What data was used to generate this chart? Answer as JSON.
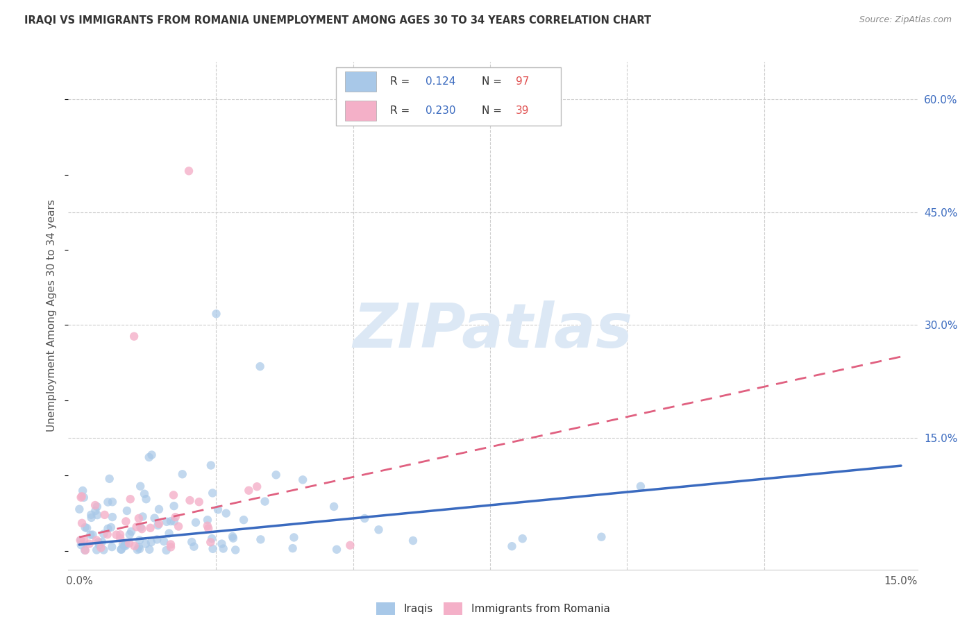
{
  "title": "IRAQI VS IMMIGRANTS FROM ROMANIA UNEMPLOYMENT AMONG AGES 30 TO 34 YEARS CORRELATION CHART",
  "source": "Source: ZipAtlas.com",
  "ylabel": "Unemployment Among Ages 30 to 34 years",
  "ytick_vals": [
    0.15,
    0.3,
    0.45,
    0.6
  ],
  "ytick_labels": [
    "15.0%",
    "30.0%",
    "45.0%",
    "60.0%"
  ],
  "xrange": [
    0.0,
    0.15
  ],
  "yrange": [
    0.0,
    0.65
  ],
  "iraqis_color": "#a8c8e8",
  "romania_color": "#f4b0c8",
  "iraqis_line_color": "#3a6abf",
  "romania_line_color": "#e06080",
  "iraqis_legend_color": "#a8c8e8",
  "romania_legend_color": "#f4b0c8",
  "watermark_color": "#dce8f5",
  "legend_R_color": "#3a6abf",
  "legend_N_color": "#e05050",
  "R_iraqis": 0.124,
  "N_iraqis": 97,
  "R_romania": 0.23,
  "N_romania": 39,
  "grid_color": "#cccccc",
  "title_color": "#333333",
  "source_color": "#888888",
  "ylabel_color": "#555555",
  "xtick_color": "#555555",
  "ytick_color": "#3a6abf"
}
